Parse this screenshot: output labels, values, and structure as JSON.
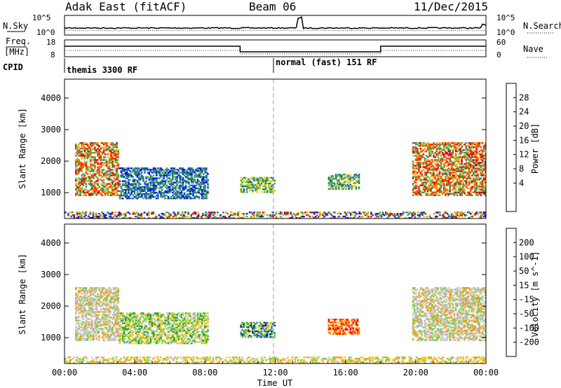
{
  "header": {
    "station": "Adak East (fitACF)",
    "beam": "Beam 06",
    "date": "11/Dec/2015"
  },
  "panels": {
    "nsky": {
      "left_label": "N.Sky",
      "right_label": "N.Search",
      "ticks_left": [
        "10^5",
        "10^0"
      ],
      "ticks_right": [
        "10^5",
        "10^0"
      ]
    },
    "freq": {
      "left_label_1": "Freq.",
      "left_label_2": "[MHz]",
      "right_label": "Nave",
      "ticks_left": [
        "18",
        "8"
      ],
      "ticks_right": [
        "60",
        "0"
      ]
    },
    "cpid": {
      "label": "CPID",
      "segments": [
        "themis 3300 RF",
        "normal (fast) 151 RF"
      ]
    }
  },
  "chart_data": [
    {
      "type": "heatmap",
      "title": "",
      "xlabel": "",
      "ylabel": "Slant Range [km]",
      "x_range_hours": [
        0,
        24
      ],
      "ylim": [
        180,
        4600
      ],
      "yticks": [
        "4000",
        "3000",
        "2000",
        "1000"
      ],
      "colorbar": {
        "label": "Power [dB]",
        "ticks": [
          "28",
          "24",
          "20",
          "16",
          "12",
          "8",
          "4"
        ],
        "colors": [
          "#e00000",
          "#ff5a00",
          "#ff9a00",
          "#ffd200",
          "#a8d43c",
          "#4cab4c",
          "#2e8a6e",
          "#2060b0",
          "#0010ff"
        ]
      },
      "echo_regions": [
        {
          "t0": 0.6,
          "t1": 3.1,
          "r0": 900,
          "r1": 2600,
          "level": "strong"
        },
        {
          "t0": 3.1,
          "t1": 8.2,
          "r0": 800,
          "r1": 1800,
          "level": "weak"
        },
        {
          "t0": 10.0,
          "t1": 12.0,
          "r0": 1000,
          "r1": 1500,
          "level": "medium"
        },
        {
          "t0": 15.0,
          "t1": 16.8,
          "r0": 1100,
          "r1": 1600,
          "level": "medium"
        },
        {
          "t0": 19.8,
          "t1": 24.0,
          "r0": 900,
          "r1": 2600,
          "level": "strong"
        },
        {
          "t0": 0.0,
          "t1": 24.0,
          "r0": 180,
          "r1": 400,
          "level": "ground"
        }
      ]
    },
    {
      "type": "heatmap",
      "title": "",
      "xlabel": "Time UT",
      "ylabel": "Slant Range [km]",
      "x_range_hours": [
        0,
        24
      ],
      "xticks": [
        "00:00",
        "04:00",
        "08:00",
        "12:00",
        "16:00",
        "20:00",
        "00:00"
      ],
      "ylim": [
        180,
        4600
      ],
      "yticks": [
        "4000",
        "3000",
        "2000",
        "1000"
      ],
      "colorbar": {
        "label": "Velocity [m s^-1]",
        "ticks": [
          "200",
          "100",
          "50",
          "15",
          "-15",
          "-50",
          "-100",
          "-200"
        ],
        "colors": [
          "#1020c0",
          "#2870e0",
          "#20a040",
          "#7ad040",
          "#c8c8c8",
          "#ffc800",
          "#ffa000",
          "#ff6000",
          "#ff0000"
        ]
      },
      "echo_regions": [
        {
          "t0": 0.6,
          "t1": 3.1,
          "r0": 900,
          "r1": 2600,
          "level": "ground-scatter"
        },
        {
          "t0": 3.1,
          "t1": 8.2,
          "r0": 800,
          "r1": 1800,
          "level": "weak"
        },
        {
          "t0": 10.0,
          "t1": 12.0,
          "r0": 1000,
          "r1": 1500,
          "level": "positive"
        },
        {
          "t0": 15.0,
          "t1": 16.8,
          "r0": 1100,
          "r1": 1600,
          "level": "negative"
        },
        {
          "t0": 19.8,
          "t1": 24.0,
          "r0": 900,
          "r1": 2600,
          "level": "ground-scatter"
        },
        {
          "t0": 0.0,
          "t1": 24.0,
          "r0": 180,
          "r1": 400,
          "level": "ground"
        }
      ]
    }
  ]
}
